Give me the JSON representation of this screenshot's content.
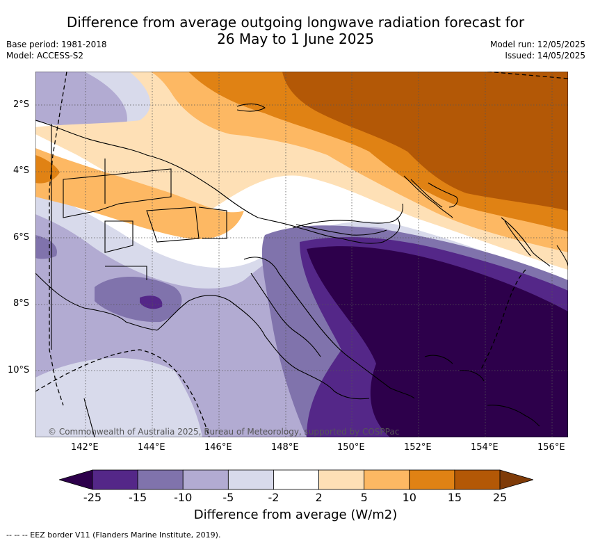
{
  "title_line1": "Difference from average outgoing longwave radiation forecast for",
  "title_line2": "26 May to 1 June 2025",
  "base_period": "Base period: 1981-2018",
  "model": "Model: ACCESS-S2",
  "model_run": "Model run: 12/05/2025",
  "issued": "Issued: 14/05/2025",
  "lat_labels": [
    "2°S",
    "4°S",
    "6°S",
    "8°S",
    "10°S"
  ],
  "lon_labels": [
    "142°E",
    "144°E",
    "146°E",
    "148°E",
    "150°E",
    "152°E",
    "154°E",
    "156°E"
  ],
  "copyright": "© Commonwealth of Australia 2025, Bureau of Meteorology, supported by COSPPac",
  "colorbar": {
    "labels": [
      "-25",
      "-15",
      "-10",
      "-5",
      "-2",
      "2",
      "5",
      "10",
      "15",
      "25"
    ],
    "colors": [
      "#2d004b",
      "#542788",
      "#8073ac",
      "#b2abd2",
      "#d8daeb",
      "#ffffff",
      "#fee0b6",
      "#fdb863",
      "#e08214",
      "#b35806",
      "#7f3b08"
    ],
    "title": "Difference from average (W/m2)"
  },
  "footer": "--  --  -- EEZ border V11 (Flanders Marine Institute, 2019)."
}
